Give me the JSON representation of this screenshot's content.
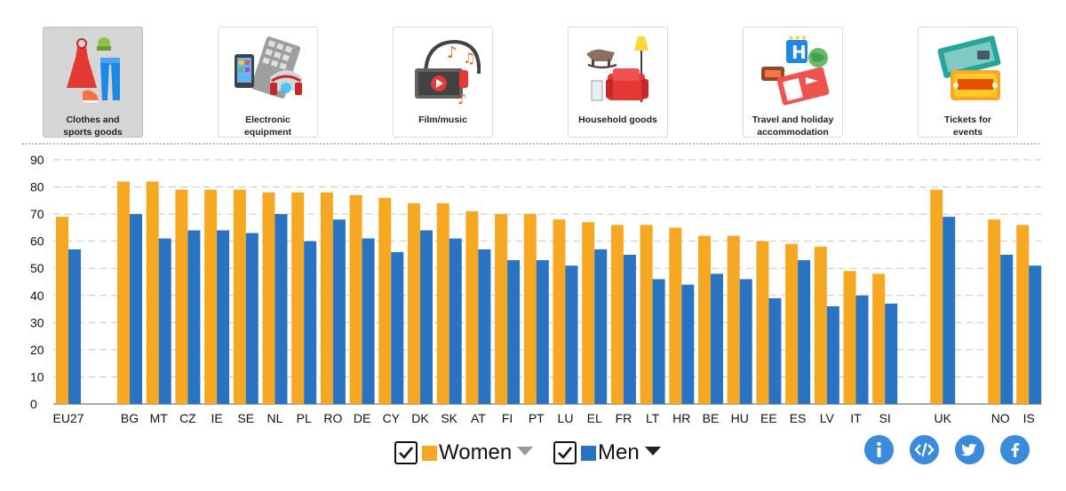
{
  "categories_nav": [
    {
      "label_lines": [
        "Clothes and",
        "sports goods"
      ],
      "icon": "clothes-icon",
      "active": true
    },
    {
      "label_lines": [
        "Electronic",
        "equipment"
      ],
      "icon": "electronics-icon",
      "active": false
    },
    {
      "label_lines": [
        "Film/music"
      ],
      "icon": "film-music-icon",
      "active": false
    },
    {
      "label_lines": [
        "Household goods"
      ],
      "icon": "household-icon",
      "active": false
    },
    {
      "label_lines": [
        "Travel and holiday",
        "accommodation"
      ],
      "icon": "travel-icon",
      "active": false
    },
    {
      "label_lines": [
        "Tickets for",
        "events"
      ],
      "icon": "tickets-icon",
      "active": false
    }
  ],
  "chart_data": {
    "type": "bar",
    "title": "",
    "xlabel": "",
    "ylabel": "",
    "ylim": [
      0,
      90
    ],
    "yticks": [
      0,
      10,
      20,
      30,
      40,
      50,
      60,
      70,
      80,
      90
    ],
    "grid": true,
    "categories": [
      "EU27",
      "BG",
      "MT",
      "CZ",
      "IE",
      "SE",
      "NL",
      "PL",
      "RO",
      "DE",
      "CY",
      "DK",
      "SK",
      "AT",
      "FI",
      "PT",
      "LU",
      "EL",
      "FR",
      "LT",
      "HR",
      "BE",
      "HU",
      "EE",
      "ES",
      "LV",
      "IT",
      "SI",
      "UK",
      "NO",
      "IS"
    ],
    "series": [
      {
        "name": "Women",
        "color": "#f7a823",
        "values": [
          69,
          82,
          82,
          79,
          79,
          79,
          78,
          78,
          78,
          77,
          76,
          74,
          74,
          71,
          70,
          70,
          68,
          67,
          66,
          66,
          65,
          62,
          62,
          60,
          59,
          58,
          49,
          48,
          79,
          68,
          66
        ]
      },
      {
        "name": "Men",
        "color": "#2a72c2",
        "values": [
          57,
          70,
          61,
          64,
          64,
          63,
          70,
          60,
          68,
          61,
          56,
          64,
          61,
          57,
          53,
          53,
          51,
          57,
          55,
          46,
          44,
          48,
          46,
          39,
          53,
          36,
          40,
          37,
          69,
          55,
          51
        ]
      }
    ],
    "legend_position": "bottom-center"
  },
  "legend": {
    "women_label": "Women",
    "men_label": "Men"
  },
  "share_icons": [
    "info-icon",
    "embed-icon",
    "twitter-icon",
    "facebook-icon"
  ]
}
